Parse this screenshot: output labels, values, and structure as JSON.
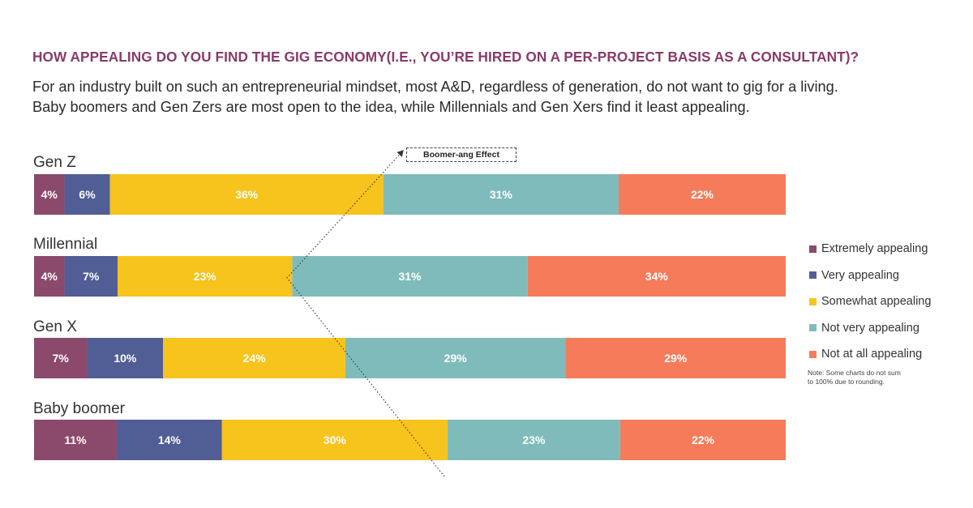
{
  "header": {
    "title": "HOW APPEALING DO YOU FIND THE GIG ECONOMY(I.E., YOU’RE HIRED ON A PER-PROJECT BASIS AS A CONSULTANT)?",
    "subtitle_line1": "For an industry built on such an entrepreneurial mindset, most A&D, regardless of generation, do not want to gig for a living.",
    "subtitle_line2": "Baby boomers and Gen Zers are most open to the idea, while Millennials and Gen Xers find it least appealing."
  },
  "annotation": {
    "label": "Boomer-ang Effect"
  },
  "note": "Note: Some charts do not sum to 100% due to rounding.",
  "colors": {
    "extremely": "#8b4a6b",
    "very": "#505e95",
    "somewhat": "#f7c31d",
    "not_very": "#80bbbb",
    "not_at_all": "#f57b5b"
  },
  "chart_data": {
    "type": "bar",
    "orientation": "horizontal",
    "stacked": true,
    "categories": [
      "Gen Z",
      "Millennial",
      "Gen X",
      "Baby boomer"
    ],
    "series": [
      {
        "name": "Extremely appealing",
        "values": [
          4,
          4,
          7,
          11
        ]
      },
      {
        "name": "Very appealing",
        "values": [
          6,
          7,
          10,
          14
        ]
      },
      {
        "name": "Somewhat appealing",
        "values": [
          36,
          23,
          24,
          30
        ]
      },
      {
        "name": "Not very appealing",
        "values": [
          31,
          31,
          29,
          23
        ]
      },
      {
        "name": "Not at all appealing",
        "values": [
          22,
          34,
          29,
          22
        ]
      }
    ],
    "value_suffix": "%",
    "legend_position": "right",
    "grid": false
  }
}
